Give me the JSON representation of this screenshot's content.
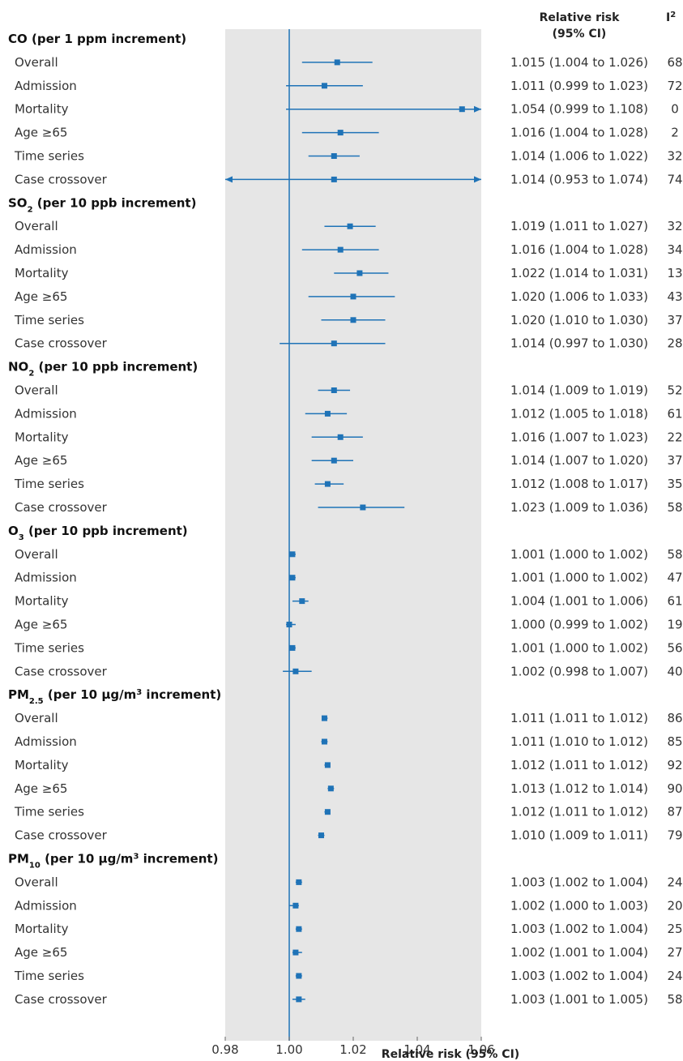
{
  "header": {
    "rr_line1": "Relative risk",
    "rr_line2": "(95% CI)",
    "i2_base": "I",
    "i2_sup": "2"
  },
  "chart_data": {
    "type": "forest",
    "xlabel": "Relative risk (95% CI)",
    "xlim": [
      0.98,
      1.06
    ],
    "ticks": [
      0.98,
      1.0,
      1.02,
      1.04,
      1.06
    ],
    "tick_labels": [
      "0.98",
      "1.00",
      "1.02",
      "1.04",
      "1.06"
    ],
    "reference_line": 1.0,
    "groups": [
      {
        "label_parts": [
          {
            "t": "CO (per 1 ppm increment)"
          }
        ],
        "rows": [
          {
            "label": "Overall",
            "rr": 1.015,
            "lo": 1.004,
            "hi": 1.026,
            "rr_text": "1.015 (1.004 to 1.026)",
            "i2": "68"
          },
          {
            "label": "Admission",
            "rr": 1.011,
            "lo": 0.999,
            "hi": 1.023,
            "rr_text": "1.011 (0.999 to 1.023)",
            "i2": "72"
          },
          {
            "label": "Mortality",
            "rr": 1.054,
            "lo": 0.999,
            "hi": 1.108,
            "rr_text": "1.054 (0.999 to 1.108)",
            "i2": "0"
          },
          {
            "label": "Age ≥65",
            "rr": 1.016,
            "lo": 1.004,
            "hi": 1.028,
            "rr_text": "1.016 (1.004 to 1.028)",
            "i2": "2"
          },
          {
            "label": "Time series",
            "rr": 1.014,
            "lo": 1.006,
            "hi": 1.022,
            "rr_text": "1.014 (1.006 to 1.022)",
            "i2": "32"
          },
          {
            "label": "Case crossover",
            "rr": 1.014,
            "lo": 0.953,
            "hi": 1.074,
            "rr_text": "1.014 (0.953 to 1.074)",
            "i2": "74"
          }
        ]
      },
      {
        "label_parts": [
          {
            "t": "SO"
          },
          {
            "t": "2",
            "sub": true
          },
          {
            "t": " (per 10 ppb increment)"
          }
        ],
        "rows": [
          {
            "label": "Overall",
            "rr": 1.019,
            "lo": 1.011,
            "hi": 1.027,
            "rr_text": "1.019 (1.011 to 1.027)",
            "i2": "32"
          },
          {
            "label": "Admission",
            "rr": 1.016,
            "lo": 1.004,
            "hi": 1.028,
            "rr_text": "1.016 (1.004 to 1.028)",
            "i2": "34"
          },
          {
            "label": "Mortality",
            "rr": 1.022,
            "lo": 1.014,
            "hi": 1.031,
            "rr_text": "1.022 (1.014 to 1.031)",
            "i2": "13"
          },
          {
            "label": "Age ≥65",
            "rr": 1.02,
            "lo": 1.006,
            "hi": 1.033,
            "rr_text": "1.020 (1.006 to 1.033)",
            "i2": "43"
          },
          {
            "label": "Time series",
            "rr": 1.02,
            "lo": 1.01,
            "hi": 1.03,
            "rr_text": "1.020 (1.010 to 1.030)",
            "i2": "37"
          },
          {
            "label": "Case crossover",
            "rr": 1.014,
            "lo": 0.997,
            "hi": 1.03,
            "rr_text": "1.014 (0.997 to 1.030)",
            "i2": "28"
          }
        ]
      },
      {
        "label_parts": [
          {
            "t": "NO"
          },
          {
            "t": "2",
            "sub": true
          },
          {
            "t": " (per 10 ppb increment)"
          }
        ],
        "rows": [
          {
            "label": "Overall",
            "rr": 1.014,
            "lo": 1.009,
            "hi": 1.019,
            "rr_text": "1.014 (1.009 to 1.019)",
            "i2": "52"
          },
          {
            "label": "Admission",
            "rr": 1.012,
            "lo": 1.005,
            "hi": 1.018,
            "rr_text": "1.012 (1.005 to 1.018)",
            "i2": "61"
          },
          {
            "label": "Mortality",
            "rr": 1.016,
            "lo": 1.007,
            "hi": 1.023,
            "rr_text": "1.016 (1.007 to 1.023)",
            "i2": "22"
          },
          {
            "label": "Age ≥65",
            "rr": 1.014,
            "lo": 1.007,
            "hi": 1.02,
            "rr_text": "1.014 (1.007 to 1.020)",
            "i2": "37"
          },
          {
            "label": "Time series",
            "rr": 1.012,
            "lo": 1.008,
            "hi": 1.017,
            "rr_text": "1.012 (1.008 to 1.017)",
            "i2": "35"
          },
          {
            "label": "Case crossover",
            "rr": 1.023,
            "lo": 1.009,
            "hi": 1.036,
            "rr_text": "1.023 (1.009 to 1.036)",
            "i2": "58"
          }
        ]
      },
      {
        "label_parts": [
          {
            "t": "O"
          },
          {
            "t": "3",
            "sub": true
          },
          {
            "t": " (per 10 ppb increment)"
          }
        ],
        "rows": [
          {
            "label": "Overall",
            "rr": 1.001,
            "lo": 1.0,
            "hi": 1.002,
            "rr_text": "1.001 (1.000 to 1.002)",
            "i2": "58"
          },
          {
            "label": "Admission",
            "rr": 1.001,
            "lo": 1.0,
            "hi": 1.002,
            "rr_text": "1.001 (1.000 to 1.002)",
            "i2": "47"
          },
          {
            "label": "Mortality",
            "rr": 1.004,
            "lo": 1.001,
            "hi": 1.006,
            "rr_text": "1.004 (1.001 to 1.006)",
            "i2": "61"
          },
          {
            "label": "Age ≥65",
            "rr": 1.0,
            "lo": 0.999,
            "hi": 1.002,
            "rr_text": "1.000 (0.999 to 1.002)",
            "i2": "19"
          },
          {
            "label": "Time series",
            "rr": 1.001,
            "lo": 1.0,
            "hi": 1.002,
            "rr_text": "1.001 (1.000 to 1.002)",
            "i2": "56"
          },
          {
            "label": "Case crossover",
            "rr": 1.002,
            "lo": 0.998,
            "hi": 1.007,
            "rr_text": "1.002 (0.998 to 1.007)",
            "i2": "40"
          }
        ]
      },
      {
        "label_parts": [
          {
            "t": "PM"
          },
          {
            "t": "2.5",
            "sub": true
          },
          {
            "t": " (per 10 µg/m"
          },
          {
            "t": "3",
            "sup": true
          },
          {
            "t": " increment)"
          }
        ],
        "rows": [
          {
            "label": "Overall",
            "rr": 1.011,
            "lo": 1.011,
            "hi": 1.012,
            "rr_text": "1.011 (1.011 to 1.012)",
            "i2": "86"
          },
          {
            "label": "Admission",
            "rr": 1.011,
            "lo": 1.01,
            "hi": 1.012,
            "rr_text": "1.011 (1.010 to 1.012)",
            "i2": "85"
          },
          {
            "label": "Mortality",
            "rr": 1.012,
            "lo": 1.011,
            "hi": 1.012,
            "rr_text": "1.012 (1.011 to 1.012)",
            "i2": "92"
          },
          {
            "label": "Age ≥65",
            "rr": 1.013,
            "lo": 1.012,
            "hi": 1.014,
            "rr_text": "1.013 (1.012 to 1.014)",
            "i2": "90"
          },
          {
            "label": "Time series",
            "rr": 1.012,
            "lo": 1.011,
            "hi": 1.012,
            "rr_text": "1.012 (1.011 to 1.012)",
            "i2": "87"
          },
          {
            "label": "Case crossover",
            "rr": 1.01,
            "lo": 1.009,
            "hi": 1.011,
            "rr_text": "1.010 (1.009 to 1.011)",
            "i2": "79"
          }
        ]
      },
      {
        "label_parts": [
          {
            "t": "PM"
          },
          {
            "t": "10",
            "sub": true
          },
          {
            "t": " (per 10 µg/m"
          },
          {
            "t": "3",
            "sup": true
          },
          {
            "t": " increment)"
          }
        ],
        "rows": [
          {
            "label": "Overall",
            "rr": 1.003,
            "lo": 1.002,
            "hi": 1.004,
            "rr_text": "1.003 (1.002 to 1.004)",
            "i2": "24"
          },
          {
            "label": "Admission",
            "rr": 1.002,
            "lo": 1.0,
            "hi": 1.003,
            "rr_text": "1.002 (1.000 to 1.003)",
            "i2": "20"
          },
          {
            "label": "Mortality",
            "rr": 1.003,
            "lo": 1.002,
            "hi": 1.004,
            "rr_text": "1.003 (1.002 to 1.004)",
            "i2": "25"
          },
          {
            "label": "Age ≥65",
            "rr": 1.002,
            "lo": 1.001,
            "hi": 1.004,
            "rr_text": "1.002 (1.001 to 1.004)",
            "i2": "27"
          },
          {
            "label": "Time series",
            "rr": 1.003,
            "lo": 1.002,
            "hi": 1.004,
            "rr_text": "1.003 (1.002 to 1.004)",
            "i2": "24"
          },
          {
            "label": "Case crossover",
            "rr": 1.003,
            "lo": 1.001,
            "hi": 1.005,
            "rr_text": "1.003 (1.001 to 1.005)",
            "i2": "58"
          }
        ]
      }
    ]
  },
  "colors": {
    "mark": "#1f73b7",
    "panel": "#e6e6e6",
    "text": "#333333"
  }
}
